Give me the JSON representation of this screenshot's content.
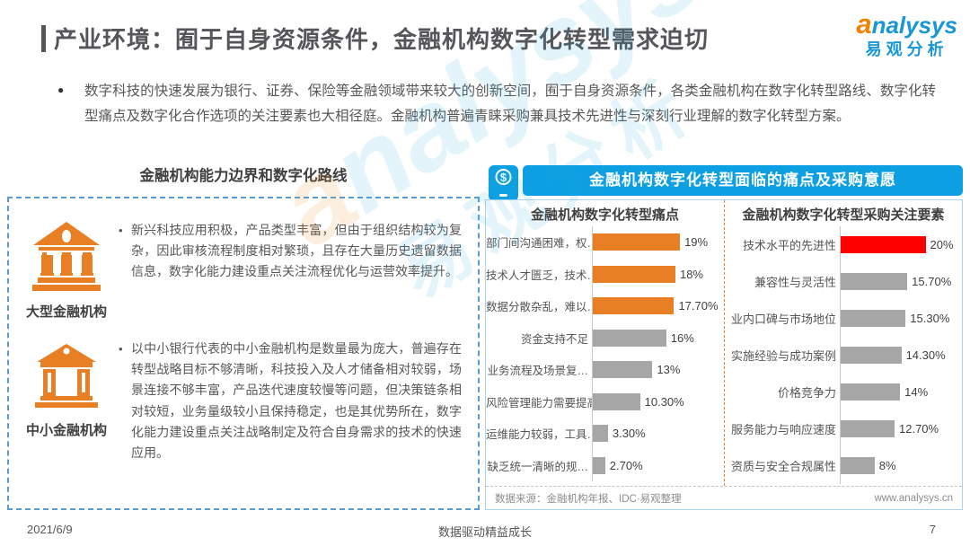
{
  "header": {
    "title": "产业环境：囿于自身资源条件，金融机构数字化转型需求迫切",
    "logo": {
      "brand_a": "a",
      "brand_rest": "nalysys",
      "brand_cn": "易观分析"
    }
  },
  "intro": {
    "bullet": "●",
    "text": "数字科技的快速发展为银行、证券、保险等金融领域带来较大的创新空间，囿于自身资源条件，各类金融机构在数字化转型路线、数字化转型痛点及数字化合作选项的关注要素也大相径庭。金融机构普遍青睐采购兼具技术先进性与深刻行业理解的数字化转型方案。",
    "text_color": "#575757"
  },
  "left_panel": {
    "title": "金融机构能力边界和数字化路线",
    "border_color": "#5B9BD5",
    "items": [
      {
        "icon": "bank-large-icon",
        "bullet": "•",
        "label": "大型金融机构",
        "text": "新兴科技应用积极，产品类型丰富，但由于组织结构较为复杂，因此审核流程制度相对繁琐，且存在大量历史遗留数据信息，数字化能力建设重点关注流程优化与运营效率提升。"
      },
      {
        "icon": "bank-small-icon",
        "bullet": "•",
        "label": "中小金融机构",
        "text": "以中小银行代表的中小金融机构是数量最为庞大，普遍存在转型战略目标不够清晰，科技投入及人才储备相对较弱，场景连接不够丰富，产品迭代速度较慢等问题，但决策链条相对较短，业务量级较小且保持稳定，也是其优势所在，数字化能力建设重点关注战略制定及符合自身需求的技术的快速应用。"
      }
    ]
  },
  "right_panel": {
    "title": "金融机构数字化转型面临的痛点及采购意愿",
    "header_color": "#0C9FE2",
    "icon": "mobile-payment-icon",
    "source": "数据来源：金融机构年报、IDC·易观整理",
    "site": "www.analysys.cn"
  },
  "chart_data": [
    {
      "type": "bar",
      "orientation": "horizontal",
      "title": "金融机构数字化转型痛点",
      "categories": [
        "部门间沟通困难，权…",
        "技术人才匮乏，技术…",
        "数据分散杂乱，难以…",
        "资金支持不足",
        "业务流程及场景复…",
        "风险管理能力需要提高",
        "运维能力较弱，工具…",
        "缺乏统一清晰的规…"
      ],
      "values": [
        19,
        18,
        17.7,
        16,
        13,
        10.3,
        3.3,
        2.7
      ],
      "labels": [
        "19%",
        "18%",
        "17.70%",
        "16%",
        "13%",
        "10.30%",
        "3.30%",
        "2.70%"
      ],
      "colors": [
        "#E87F24",
        "#E87F24",
        "#E87F24",
        "#A6A6A6",
        "#A6A6A6",
        "#A6A6A6",
        "#A6A6A6",
        "#A6A6A6"
      ],
      "xlabel": "",
      "ylabel": "",
      "xmax": 20,
      "grid": false,
      "legend": "none",
      "value_labels": "outside-end"
    },
    {
      "type": "bar",
      "orientation": "horizontal",
      "title": "金融机构数字化转型采购关注要素",
      "categories": [
        "技术水平的先进性",
        "兼容性与灵活性",
        "业内口碑与市场地位",
        "实施经验与成功案例",
        "价格竞争力",
        "服务能力与响应速度",
        "资质与安全合规属性"
      ],
      "values": [
        20,
        15.7,
        15.3,
        14.3,
        14,
        12.7,
        8
      ],
      "labels": [
        "20%",
        "15.70%",
        "15.30%",
        "14.30%",
        "14%",
        "12.70%",
        "8%"
      ],
      "colors": [
        "#FF0000",
        "#A6A6A6",
        "#A6A6A6",
        "#A6A6A6",
        "#A6A6A6",
        "#A6A6A6",
        "#A6A6A6"
      ],
      "xlabel": "",
      "ylabel": "",
      "xmax": 20,
      "grid": false,
      "legend": "none",
      "value_labels": "outside-end"
    }
  ],
  "footer": {
    "date": "2021/6/9",
    "center": "数据驱动精益成长",
    "page": "7"
  },
  "colors": {
    "accent_orange": "#E87F24",
    "highlight_red": "#FF0000",
    "bar_gray": "#A6A6A6",
    "header_blue": "#0C9FE2",
    "brand_blue": "#1897D4",
    "brand_orange": "#F08300",
    "title_gray": "#55565A"
  }
}
